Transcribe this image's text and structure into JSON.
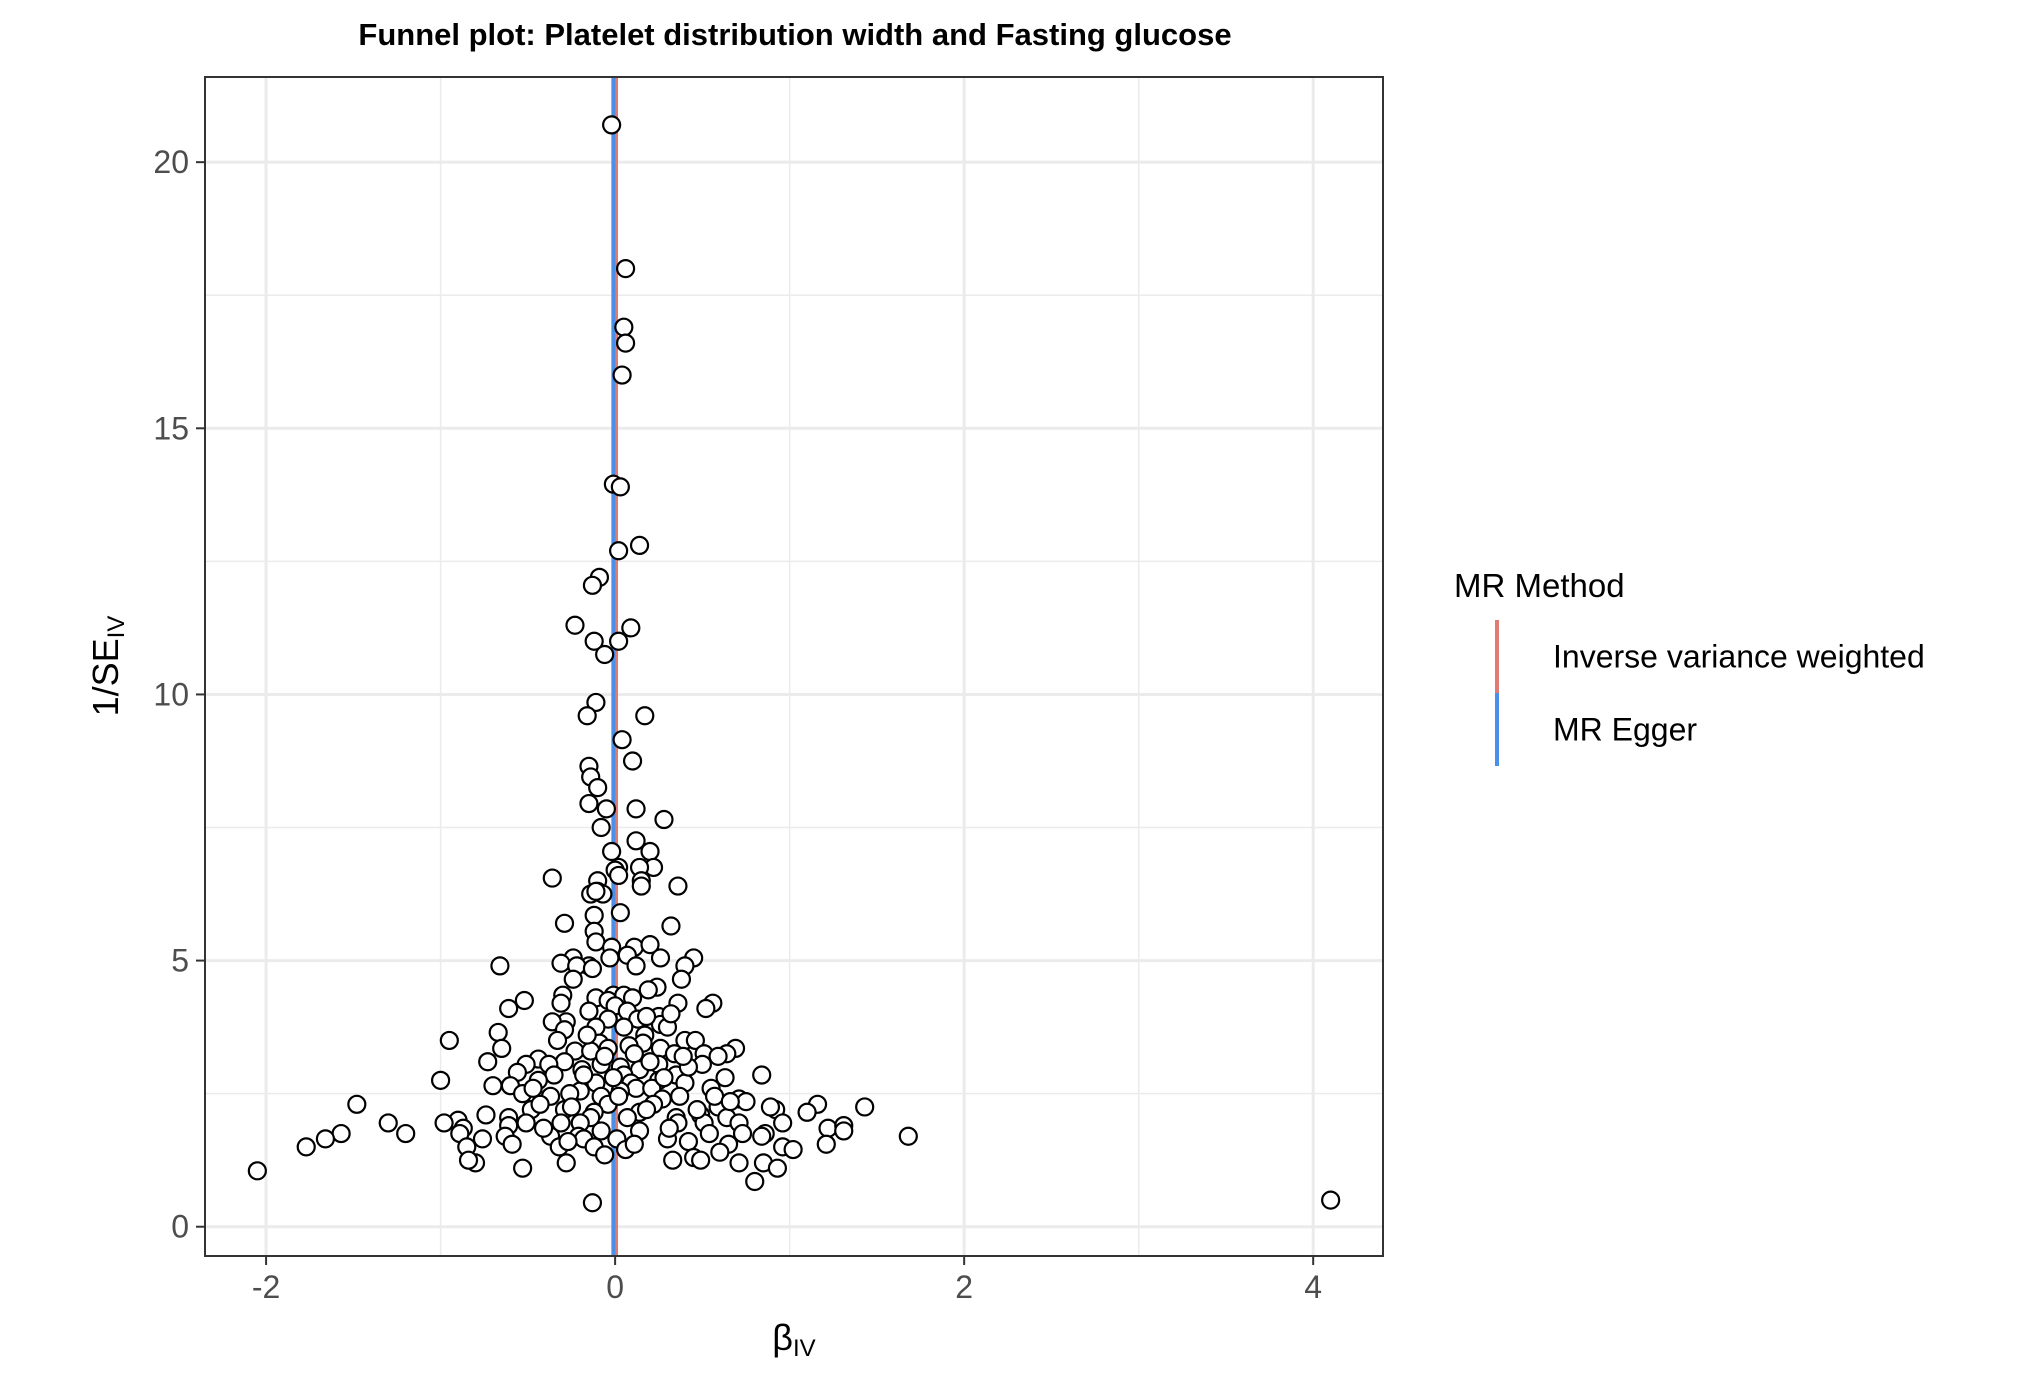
{
  "chart_data": {
    "type": "scatter",
    "title": "Funnel plot: Platelet distribution width and Fasting glucose",
    "xlabel": "βIV",
    "xlabel_main": "β",
    "xlabel_sub": "IV",
    "ylabel": "1/SEIV",
    "ylabel_main": "1/SE",
    "ylabel_sub": "IV",
    "xlim": [
      -2.35,
      4.4
    ],
    "ylim": [
      -0.55,
      21.6
    ],
    "x_ticks": [
      -2,
      0,
      2,
      4
    ],
    "x_tick_labels": [
      "-2",
      "0",
      "2",
      "4"
    ],
    "y_ticks": [
      0,
      5,
      10,
      15,
      20
    ],
    "y_tick_labels": [
      "0",
      "5",
      "10",
      "15",
      "20"
    ],
    "grid": true,
    "legend": {
      "title": "MR Method",
      "placement": "right",
      "entries": [
        {
          "label": "Inverse variance weighted",
          "color": "#e07a72"
        },
        {
          "label": "MR Egger",
          "color": "#4a8fe8"
        }
      ]
    },
    "lines": [
      {
        "name": "Inverse variance weighted",
        "slope_x": 0.005,
        "color": "#e07a72"
      },
      {
        "name": "MR Egger",
        "slope_x": -0.01,
        "color": "#4a8fe8"
      }
    ],
    "points": [
      [
        -0.02,
        20.7
      ],
      [
        0.06,
        18.0
      ],
      [
        0.05,
        16.9
      ],
      [
        0.06,
        16.6
      ],
      [
        0.04,
        16.0
      ],
      [
        -0.01,
        13.95
      ],
      [
        0.03,
        13.9
      ],
      [
        0.14,
        12.8
      ],
      [
        0.02,
        12.7
      ],
      [
        -0.09,
        12.2
      ],
      [
        -0.13,
        12.05
      ],
      [
        -0.23,
        11.3
      ],
      [
        0.09,
        11.25
      ],
      [
        -0.12,
        11.0
      ],
      [
        0.02,
        11.0
      ],
      [
        -0.06,
        10.75
      ],
      [
        -0.11,
        9.85
      ],
      [
        -0.16,
        9.6
      ],
      [
        0.17,
        9.6
      ],
      [
        0.04,
        9.15
      ],
      [
        0.1,
        8.75
      ],
      [
        -0.15,
        8.65
      ],
      [
        -0.14,
        8.45
      ],
      [
        -0.1,
        8.25
      ],
      [
        -0.15,
        7.95
      ],
      [
        -0.05,
        7.85
      ],
      [
        0.12,
        7.85
      ],
      [
        0.28,
        7.65
      ],
      [
        -0.08,
        7.5
      ],
      [
        0.12,
        7.25
      ],
      [
        0.2,
        7.05
      ],
      [
        -0.02,
        7.05
      ],
      [
        0.02,
        6.75
      ],
      [
        0.22,
        6.75
      ],
      [
        0.14,
        6.75
      ],
      [
        0.0,
        6.7
      ],
      [
        0.02,
        6.6
      ],
      [
        0.15,
        6.5
      ],
      [
        -0.1,
        6.5
      ],
      [
        -0.36,
        6.55
      ],
      [
        0.15,
        6.4
      ],
      [
        0.36,
        6.4
      ],
      [
        -0.1,
        6.3
      ],
      [
        -0.14,
        6.25
      ],
      [
        -0.07,
        6.25
      ],
      [
        -0.11,
        6.3
      ],
      [
        0.03,
        5.9
      ],
      [
        -0.12,
        5.85
      ],
      [
        -0.29,
        5.7
      ],
      [
        0.32,
        5.65
      ],
      [
        -0.12,
        5.55
      ],
      [
        -0.11,
        5.35
      ],
      [
        -0.02,
        5.25
      ],
      [
        0.11,
        5.25
      ],
      [
        0.2,
        5.3
      ],
      [
        0.45,
        5.05
      ],
      [
        0.26,
        5.05
      ],
      [
        0.07,
        5.1
      ],
      [
        -0.03,
        5.05
      ],
      [
        -0.24,
        5.05
      ],
      [
        -0.31,
        4.95
      ],
      [
        -0.15,
        4.9
      ],
      [
        -0.22,
        4.9
      ],
      [
        -0.13,
        4.85
      ],
      [
        0.12,
        4.9
      ],
      [
        0.4,
        4.9
      ],
      [
        -0.66,
        4.9
      ],
      [
        0.38,
        4.65
      ],
      [
        -0.24,
        4.65
      ],
      [
        0.24,
        4.5
      ],
      [
        0.19,
        4.45
      ],
      [
        -0.01,
        4.35
      ],
      [
        0.05,
        4.35
      ],
      [
        0.1,
        4.3
      ],
      [
        -0.3,
        4.35
      ],
      [
        -0.11,
        4.3
      ],
      [
        -0.04,
        4.25
      ],
      [
        -0.52,
        4.25
      ],
      [
        -0.31,
        4.2
      ],
      [
        0.0,
        4.15
      ],
      [
        0.36,
        4.2
      ],
      [
        0.56,
        4.2
      ],
      [
        -0.61,
        4.1
      ],
      [
        0.52,
        4.1
      ],
      [
        0.07,
        4.05
      ],
      [
        -0.15,
        4.05
      ],
      [
        0.25,
        3.95
      ],
      [
        0.13,
        3.9
      ],
      [
        -0.04,
        3.9
      ],
      [
        -0.28,
        3.85
      ],
      [
        -0.36,
        3.85
      ],
      [
        0.26,
        3.8
      ],
      [
        0.3,
        3.75
      ],
      [
        -0.11,
        3.75
      ],
      [
        0.05,
        3.75
      ],
      [
        0.17,
        3.6
      ],
      [
        -0.29,
        3.7
      ],
      [
        -0.67,
        3.65
      ],
      [
        0.4,
        3.5
      ],
      [
        0.46,
        3.5
      ],
      [
        -0.95,
        3.5
      ],
      [
        -0.33,
        3.5
      ],
      [
        0.16,
        3.45
      ],
      [
        -0.09,
        3.45
      ],
      [
        0.08,
        3.4
      ],
      [
        -0.04,
        3.35
      ],
      [
        0.26,
        3.35
      ],
      [
        -0.65,
        3.35
      ],
      [
        0.69,
        3.35
      ],
      [
        -0.23,
        3.3
      ],
      [
        -0.14,
        3.3
      ],
      [
        0.11,
        3.25
      ],
      [
        0.34,
        3.25
      ],
      [
        0.51,
        3.25
      ],
      [
        0.64,
        3.25
      ],
      [
        -0.73,
        3.1
      ],
      [
        -0.29,
        3.1
      ],
      [
        -0.44,
        3.15
      ],
      [
        -0.51,
        3.05
      ],
      [
        0.59,
        3.2
      ],
      [
        -0.08,
        3.05
      ],
      [
        0.03,
        3.0
      ],
      [
        0.25,
        3.05
      ],
      [
        0.5,
        3.05
      ],
      [
        -0.38,
        3.05
      ],
      [
        -0.19,
        2.95
      ],
      [
        0.14,
        2.95
      ],
      [
        -0.56,
        2.9
      ],
      [
        0.05,
        2.85
      ],
      [
        0.35,
        2.85
      ],
      [
        -0.35,
        2.85
      ],
      [
        0.63,
        2.8
      ],
      [
        0.84,
        2.85
      ],
      [
        -1.0,
        2.75
      ],
      [
        0.25,
        2.75
      ],
      [
        -0.44,
        2.75
      ],
      [
        -0.11,
        2.7
      ],
      [
        0.09,
        2.7
      ],
      [
        0.4,
        2.7
      ],
      [
        -0.6,
        2.65
      ],
      [
        -0.7,
        2.65
      ],
      [
        0.55,
        2.6
      ],
      [
        -0.2,
        2.55
      ],
      [
        0.12,
        2.6
      ],
      [
        0.03,
        2.55
      ],
      [
        0.21,
        2.6
      ],
      [
        -0.26,
        2.5
      ],
      [
        -0.53,
        2.5
      ],
      [
        0.37,
        2.45
      ],
      [
        -0.08,
        2.45
      ],
      [
        -0.37,
        2.45
      ],
      [
        0.71,
        2.4
      ],
      [
        0.75,
        2.35
      ],
      [
        0.27,
        2.4
      ],
      [
        -0.04,
        2.3
      ],
      [
        -1.48,
        2.3
      ],
      [
        0.22,
        2.3
      ],
      [
        0.59,
        2.25
      ],
      [
        0.92,
        2.2
      ],
      [
        1.16,
        2.3
      ],
      [
        1.43,
        2.25
      ],
      [
        1.1,
        2.15
      ],
      [
        0.89,
        2.25
      ],
      [
        -0.29,
        2.2
      ],
      [
        -0.12,
        2.15
      ],
      [
        -0.48,
        2.2
      ],
      [
        0.14,
        2.15
      ],
      [
        -0.74,
        2.1
      ],
      [
        -0.61,
        2.05
      ],
      [
        0.64,
        2.05
      ],
      [
        0.49,
        2.1
      ],
      [
        0.35,
        2.05
      ],
      [
        0.07,
        2.05
      ],
      [
        -0.14,
        2.05
      ],
      [
        0.36,
        1.95
      ],
      [
        0.51,
        1.95
      ],
      [
        0.71,
        1.95
      ],
      [
        0.96,
        1.95
      ],
      [
        -0.2,
        1.95
      ],
      [
        -0.31,
        1.95
      ],
      [
        -0.9,
        2.0
      ],
      [
        -0.98,
        1.95
      ],
      [
        -1.3,
        1.95
      ],
      [
        -0.51,
        1.95
      ],
      [
        -0.61,
        1.9
      ],
      [
        1.22,
        1.85
      ],
      [
        1.31,
        1.9
      ],
      [
        1.31,
        1.8
      ],
      [
        -0.87,
        1.85
      ],
      [
        0.14,
        1.8
      ],
      [
        -0.08,
        1.8
      ],
      [
        -1.2,
        1.75
      ],
      [
        -1.57,
        1.75
      ],
      [
        -0.89,
        1.75
      ],
      [
        0.54,
        1.75
      ],
      [
        0.73,
        1.75
      ],
      [
        0.86,
        1.75
      ],
      [
        -0.37,
        1.7
      ],
      [
        -0.21,
        1.7
      ],
      [
        -0.63,
        1.7
      ],
      [
        0.84,
        1.7
      ],
      [
        1.68,
        1.7
      ],
      [
        -1.66,
        1.65
      ],
      [
        0.3,
        1.65
      ],
      [
        0.01,
        1.65
      ],
      [
        -0.76,
        1.65
      ],
      [
        -0.18,
        1.65
      ],
      [
        0.42,
        1.6
      ],
      [
        0.65,
        1.55
      ],
      [
        1.21,
        1.55
      ],
      [
        -0.59,
        1.55
      ],
      [
        -1.77,
        1.5
      ],
      [
        0.96,
        1.5
      ],
      [
        -0.85,
        1.5
      ],
      [
        -0.32,
        1.5
      ],
      [
        -0.12,
        1.5
      ],
      [
        0.06,
        1.45
      ],
      [
        1.02,
        1.45
      ],
      [
        0.6,
        1.4
      ],
      [
        -0.06,
        1.35
      ],
      [
        0.45,
        1.3
      ],
      [
        0.33,
        1.25
      ],
      [
        -0.8,
        1.2
      ],
      [
        0.49,
        1.25
      ],
      [
        0.71,
        1.2
      ],
      [
        0.85,
        1.2
      ],
      [
        -0.84,
        1.25
      ],
      [
        -0.28,
        1.2
      ],
      [
        0.93,
        1.1
      ],
      [
        -0.53,
        1.1
      ],
      [
        -2.05,
        1.05
      ],
      [
        0.8,
        0.85
      ],
      [
        -0.13,
        0.45
      ],
      [
        4.1,
        0.5
      ],
      [
        0.18,
        2.2
      ],
      [
        -0.43,
        2.3
      ],
      [
        0.28,
        2.8
      ],
      [
        0.42,
        3.0
      ],
      [
        -0.06,
        3.2
      ],
      [
        0.2,
        3.1
      ],
      [
        -0.18,
        2.85
      ],
      [
        0.47,
        2.2
      ],
      [
        -0.25,
        2.25
      ],
      [
        0.02,
        2.45
      ],
      [
        0.31,
        1.85
      ],
      [
        -0.41,
        1.85
      ],
      [
        0.11,
        1.55
      ],
      [
        0.57,
        2.45
      ],
      [
        -0.16,
        3.6
      ],
      [
        0.32,
        4.0
      ],
      [
        -0.01,
        2.8
      ],
      [
        0.39,
        3.2
      ],
      [
        -0.47,
        2.6
      ],
      [
        0.66,
        2.35
      ],
      [
        0.18,
        3.95
      ],
      [
        -0.27,
        1.6
      ]
    ]
  }
}
